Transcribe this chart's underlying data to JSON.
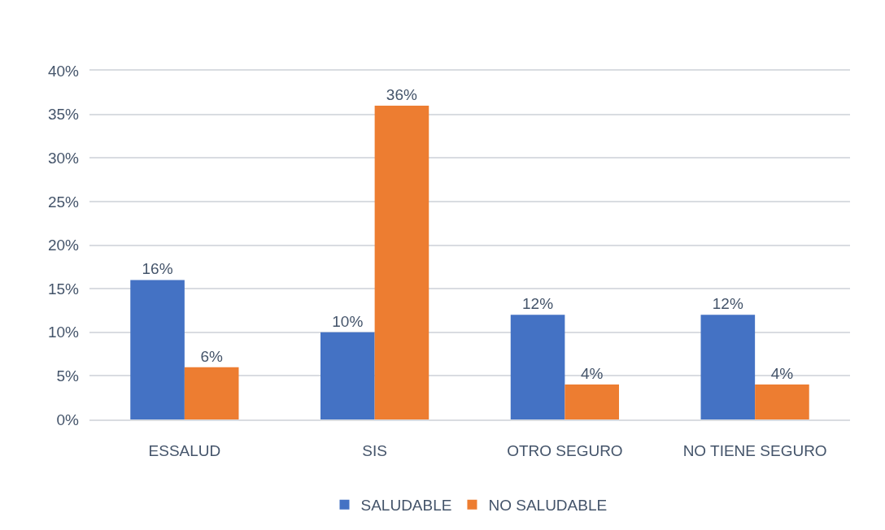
{
  "chart_data": {
    "type": "bar",
    "categories": [
      "ESSALUD",
      "SIS",
      "OTRO SEGURO",
      "NO TIENE SEGURO"
    ],
    "series": [
      {
        "name": "SALUDABLE",
        "color": "#4472c4",
        "values": [
          16,
          10,
          12,
          12
        ],
        "value_labels": [
          "16%",
          "10%",
          "12%",
          "12%"
        ]
      },
      {
        "name": "NO SALUDABLE",
        "color": "#ed7d31",
        "values": [
          6,
          36,
          4,
          4
        ],
        "value_labels": [
          "6%",
          "36%",
          "4%",
          "4%"
        ]
      }
    ],
    "ylim": [
      0,
      40
    ],
    "yticks": [
      {
        "value": 0,
        "label": "0%"
      },
      {
        "value": 5,
        "label": "5%"
      },
      {
        "value": 10,
        "label": "10%"
      },
      {
        "value": 15,
        "label": "15%"
      },
      {
        "value": 20,
        "label": "20%"
      },
      {
        "value": 25,
        "label": "25%"
      },
      {
        "value": 30,
        "label": "30%"
      },
      {
        "value": 35,
        "label": "35%"
      },
      {
        "value": 40,
        "label": "40%"
      }
    ],
    "grid": "y",
    "legend": "bottom"
  }
}
